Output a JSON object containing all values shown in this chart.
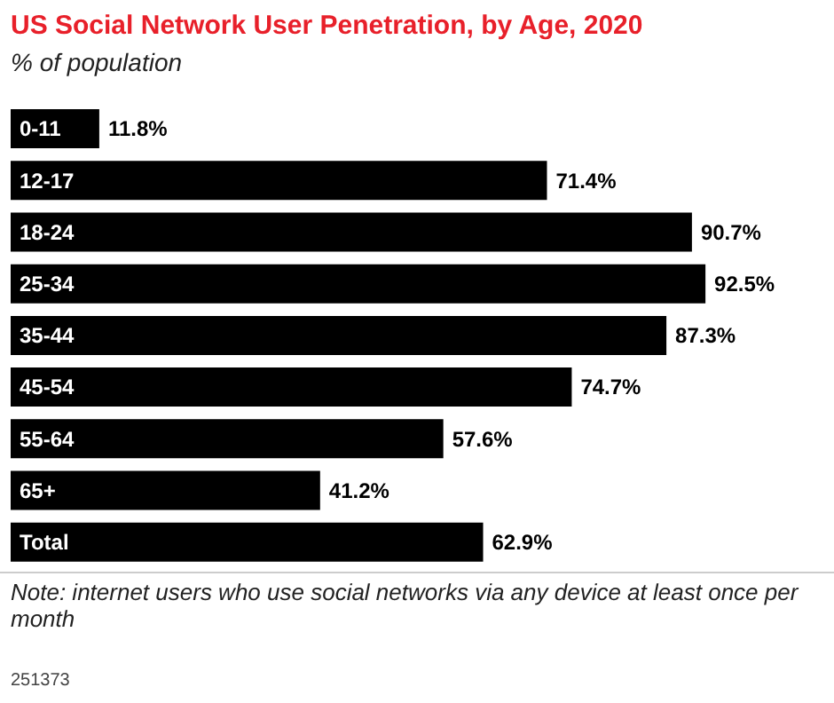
{
  "chart_data": {
    "type": "bar",
    "orientation": "horizontal",
    "title": "US Social Network User Penetration, by Age, 2020",
    "subtitle": "% of population",
    "categories": [
      "0-11",
      "12-17",
      "18-24",
      "25-34",
      "35-44",
      "45-54",
      "55-64",
      "65+",
      "Total"
    ],
    "values": [
      11.8,
      71.4,
      90.7,
      92.5,
      87.3,
      74.7,
      57.6,
      41.2,
      62.9
    ],
    "value_labels": [
      "11.8%",
      "71.4%",
      "90.7%",
      "92.5%",
      "87.3%",
      "74.7%",
      "57.6%",
      "41.2%",
      "62.9%"
    ],
    "color": "#000000",
    "annotations": [
      "Note: internet users who use social networks via any device at least once per month",
      "251373"
    ]
  }
}
